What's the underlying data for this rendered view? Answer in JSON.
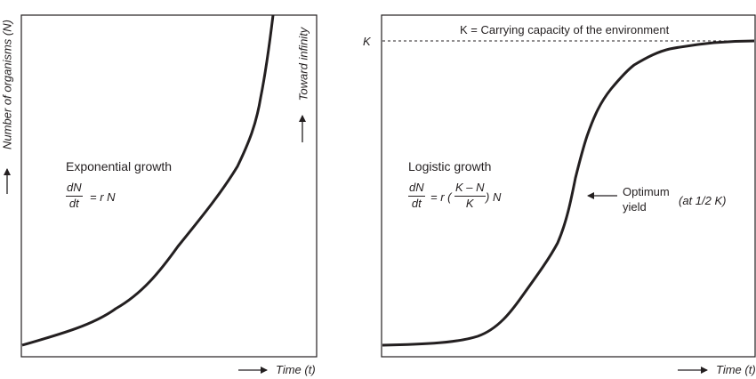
{
  "left_panel": {
    "y_axis_label": "Number of organisms (N)",
    "toward_label": "Toward infinity",
    "title": "Exponential growth",
    "formula": {
      "num": "dN",
      "den": "dt",
      "rhs": "= r N"
    },
    "x_axis_label": "Time (t)"
  },
  "right_panel": {
    "k_label": "K",
    "k_caption": "K = Carrying capacity of the environment",
    "title": "Logistic growth",
    "formula": {
      "num": "dN",
      "den": "dt",
      "eq": "= r (",
      "inner_num": "K – N",
      "inner_den": "K",
      "tail": ") N"
    },
    "optimum_line1": "Optimum",
    "optimum_line2": "yield",
    "optimum_note": "(at 1/2 K)",
    "x_axis_label": "Time (t)"
  },
  "colors": {
    "ink": "#231f20",
    "background": "#ffffff"
  }
}
